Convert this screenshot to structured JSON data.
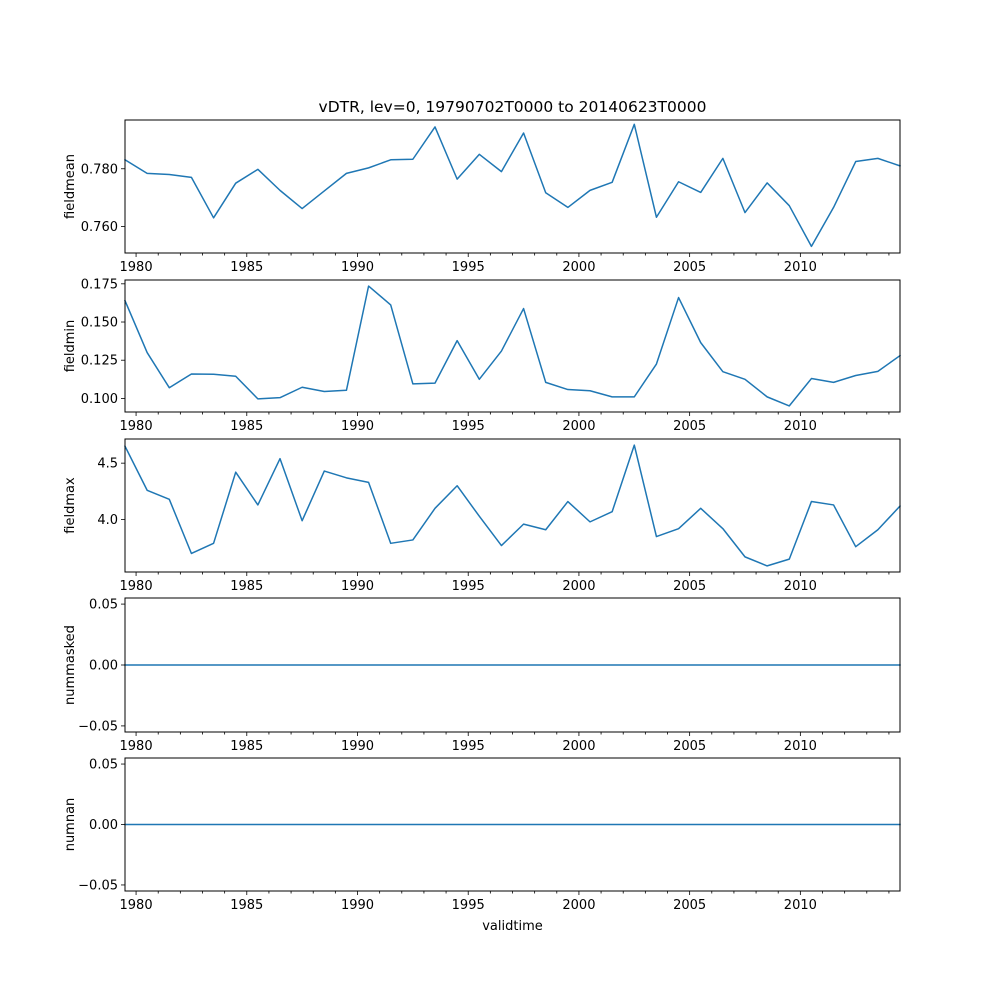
{
  "chart_data": {
    "type": "line",
    "title": "vDTR, lev=0, 19790702T0000 to 20140623T0000",
    "xlabel": "validtime",
    "xlim": [
      1979.5,
      2014.5
    ],
    "x_major_ticks": [
      1980,
      1985,
      1990,
      1995,
      2000,
      2005,
      2010
    ],
    "x_minor_ticks": [
      1981,
      1982,
      1983,
      1984,
      1986,
      1987,
      1988,
      1989,
      1991,
      1992,
      1993,
      1994,
      1996,
      1997,
      1998,
      1999,
      2001,
      2002,
      2003,
      2004,
      2006,
      2007,
      2008,
      2009,
      2011,
      2012,
      2013,
      2014
    ],
    "x": [
      1979.5,
      1980.5,
      1981.5,
      1982.5,
      1983.5,
      1984.5,
      1985.5,
      1986.5,
      1987.5,
      1988.5,
      1989.5,
      1990.5,
      1991.5,
      1992.5,
      1993.5,
      1994.5,
      1995.5,
      1996.5,
      1997.5,
      1998.5,
      1999.5,
      2000.5,
      2001.5,
      2002.5,
      2003.5,
      2004.5,
      2005.5,
      2006.5,
      2007.5,
      2008.5,
      2009.5,
      2010.5,
      2011.5,
      2012.5,
      2013.5,
      2014.5
    ],
    "panels": [
      {
        "ylabel": "fieldmean",
        "ylim": [
          0.7508,
          0.7969
        ],
        "yticks": [
          0.76,
          0.78
        ],
        "ytick_labels": [
          "0.760",
          "0.780"
        ],
        "values": [
          0.7831,
          0.7784,
          0.778,
          0.777,
          0.763,
          0.775,
          0.7798,
          0.7725,
          0.7662,
          0.7723,
          0.7784,
          0.7803,
          0.7831,
          0.7833,
          0.7945,
          0.7764,
          0.785,
          0.779,
          0.7924,
          0.7717,
          0.7666,
          0.7725,
          0.7753,
          0.7954,
          0.7632,
          0.7755,
          0.7718,
          0.7836,
          0.7648,
          0.7751,
          0.7672,
          0.7531,
          0.7666,
          0.7825,
          0.7836,
          0.781
        ]
      },
      {
        "ylabel": "fieldmin",
        "ylim": [
          0.0911,
          0.1775
        ],
        "yticks": [
          0.1,
          0.125,
          0.15,
          0.175
        ],
        "ytick_labels": [
          "0.100",
          "0.125",
          "0.150",
          "0.175"
        ],
        "values": [
          0.164,
          0.13,
          0.107,
          0.116,
          0.1158,
          0.1145,
          0.0997,
          0.1005,
          0.1073,
          0.1045,
          0.1053,
          0.1735,
          0.1612,
          0.1095,
          0.11,
          0.1378,
          0.1125,
          0.131,
          0.1588,
          0.1105,
          0.1058,
          0.105,
          0.101,
          0.101,
          0.1225,
          0.166,
          0.1365,
          0.1175,
          0.1125,
          0.101,
          0.0951,
          0.113,
          0.1105,
          0.115,
          0.1177,
          0.128
        ]
      },
      {
        "ylabel": "fieldmax",
        "ylim": [
          3.536,
          4.714
        ],
        "yticks": [
          4.0,
          4.5
        ],
        "ytick_labels": [
          "4.0",
          "4.5"
        ],
        "values": [
          4.65,
          4.26,
          4.18,
          3.7,
          3.79,
          4.42,
          4.13,
          4.54,
          3.99,
          4.43,
          4.37,
          4.33,
          3.79,
          3.82,
          4.1,
          4.3,
          4.03,
          3.77,
          3.96,
          3.91,
          4.16,
          3.98,
          4.07,
          4.66,
          3.85,
          3.92,
          4.1,
          3.92,
          3.67,
          3.59,
          3.65,
          4.16,
          4.13,
          3.76,
          3.91,
          4.12
        ]
      },
      {
        "ylabel": "nummasked",
        "ylim": [
          -0.055,
          0.055
        ],
        "yticks": [
          -0.05,
          0.0,
          0.05
        ],
        "ytick_labels": [
          "−0.05",
          "0.00",
          "0.05"
        ],
        "values": [
          0,
          0,
          0,
          0,
          0,
          0,
          0,
          0,
          0,
          0,
          0,
          0,
          0,
          0,
          0,
          0,
          0,
          0,
          0,
          0,
          0,
          0,
          0,
          0,
          0,
          0,
          0,
          0,
          0,
          0,
          0,
          0,
          0,
          0,
          0,
          0
        ]
      },
      {
        "ylabel": "numnan",
        "ylim": [
          -0.055,
          0.055
        ],
        "yticks": [
          -0.05,
          0.0,
          0.05
        ],
        "ytick_labels": [
          "−0.05",
          "0.00",
          "0.05"
        ],
        "values": [
          0,
          0,
          0,
          0,
          0,
          0,
          0,
          0,
          0,
          0,
          0,
          0,
          0,
          0,
          0,
          0,
          0,
          0,
          0,
          0,
          0,
          0,
          0,
          0,
          0,
          0,
          0,
          0,
          0,
          0,
          0,
          0,
          0,
          0,
          0,
          0
        ]
      }
    ]
  }
}
